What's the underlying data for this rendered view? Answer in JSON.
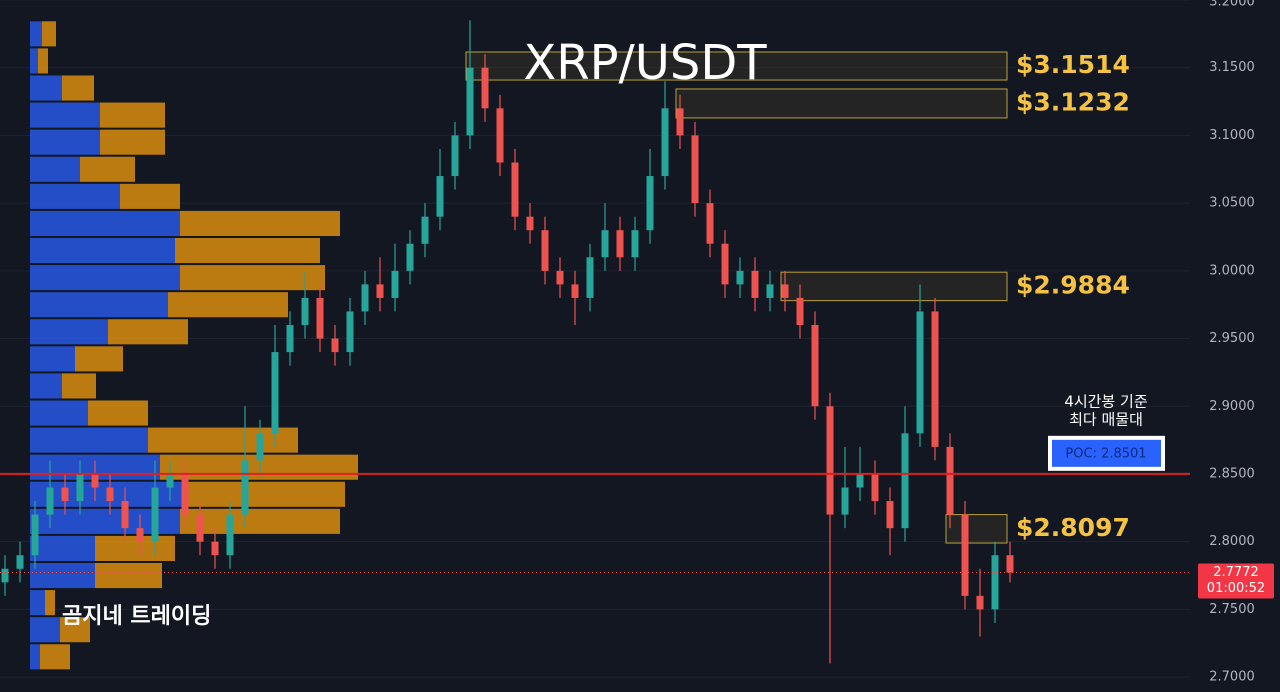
{
  "chart_data": {
    "type": "candlestick",
    "title": "XRP/USDT",
    "watermark": "곰지네 트레이딩",
    "up_color": "#26a69a",
    "down_color": "#ef5350",
    "ylim": [
      2.689,
      3.2
    ],
    "yticks": [
      {
        "value": 3.2,
        "label": "3.2000"
      },
      {
        "value": 3.15,
        "label": "3.1500"
      },
      {
        "value": 3.1,
        "label": "3.1000"
      },
      {
        "value": 3.05,
        "label": "3.0500"
      },
      {
        "value": 3.0,
        "label": "3.0000"
      },
      {
        "value": 2.95,
        "label": "2.9500"
      },
      {
        "value": 2.9,
        "label": "2.9000"
      },
      {
        "value": 2.85,
        "label": "2.8500"
      },
      {
        "value": 2.8,
        "label": "2.8000"
      },
      {
        "value": 2.75,
        "label": "2.7500"
      },
      {
        "value": 2.7,
        "label": "2.7000"
      }
    ],
    "grid": true,
    "open": [
      2.77,
      2.78,
      2.79,
      2.82,
      2.84,
      2.83,
      2.85,
      2.84,
      2.83,
      2.81,
      2.8,
      2.84,
      2.85,
      2.82,
      2.8,
      2.79,
      2.82,
      2.86,
      2.88,
      2.94,
      2.96,
      2.98,
      2.95,
      2.94,
      2.97,
      2.99,
      2.98,
      3.0,
      3.02,
      3.04,
      3.07,
      3.1,
      3.15,
      3.12,
      3.08,
      3.04,
      3.03,
      3.0,
      2.99,
      2.98,
      3.01,
      3.03,
      3.01,
      3.03,
      3.07,
      3.12,
      3.1,
      3.05,
      3.02,
      2.99,
      3.0,
      2.98,
      2.99,
      2.98,
      2.96,
      2.9,
      2.82,
      2.84,
      2.85,
      2.83,
      2.81,
      2.88,
      2.97,
      2.87,
      2.82,
      2.76,
      2.75,
      2.79
    ],
    "high": [
      2.79,
      2.8,
      2.83,
      2.86,
      2.85,
      2.86,
      2.86,
      2.85,
      2.84,
      2.82,
      2.86,
      2.86,
      2.86,
      2.83,
      2.81,
      2.83,
      2.9,
      2.89,
      2.96,
      2.97,
      3.0,
      2.99,
      2.96,
      2.98,
      3.0,
      3.01,
      3.02,
      3.03,
      3.05,
      3.09,
      3.11,
      3.185,
      3.16,
      3.13,
      3.09,
      3.05,
      3.04,
      3.01,
      3.0,
      3.02,
      3.05,
      3.04,
      3.04,
      3.09,
      3.14,
      3.13,
      3.11,
      3.06,
      3.03,
      3.01,
      3.01,
      3.0,
      3.0,
      2.99,
      2.97,
      2.91,
      2.87,
      2.87,
      2.86,
      2.84,
      2.9,
      2.99,
      2.98,
      2.88,
      2.83,
      2.78,
      2.8,
      2.8
    ],
    "low": [
      2.76,
      2.77,
      2.78,
      2.81,
      2.82,
      2.82,
      2.83,
      2.82,
      2.8,
      2.79,
      2.79,
      2.83,
      2.81,
      2.79,
      2.78,
      2.78,
      2.81,
      2.85,
      2.87,
      2.93,
      2.95,
      2.94,
      2.93,
      2.93,
      2.96,
      2.97,
      2.97,
      2.99,
      3.01,
      3.03,
      3.06,
      3.09,
      3.11,
      3.07,
      3.03,
      3.02,
      2.99,
      2.98,
      2.96,
      2.97,
      3.0,
      3.0,
      3.0,
      3.02,
      3.06,
      3.09,
      3.04,
      3.01,
      2.98,
      2.98,
      2.97,
      2.97,
      2.97,
      2.95,
      2.89,
      2.71,
      2.81,
      2.83,
      2.82,
      2.79,
      2.8,
      2.87,
      2.86,
      2.81,
      2.75,
      2.73,
      2.74,
      2.77
    ],
    "close": [
      2.78,
      2.79,
      2.82,
      2.84,
      2.83,
      2.85,
      2.84,
      2.83,
      2.81,
      2.8,
      2.84,
      2.85,
      2.82,
      2.8,
      2.79,
      2.82,
      2.86,
      2.88,
      2.94,
      2.96,
      2.98,
      2.95,
      2.94,
      2.97,
      2.99,
      2.98,
      3.0,
      3.02,
      3.04,
      3.07,
      3.1,
      3.15,
      3.12,
      3.08,
      3.04,
      3.03,
      3.0,
      2.99,
      2.98,
      3.01,
      3.03,
      3.01,
      3.03,
      3.07,
      3.12,
      3.1,
      3.05,
      3.02,
      2.99,
      3.0,
      2.98,
      2.99,
      2.98,
      2.96,
      2.9,
      2.82,
      2.84,
      2.85,
      2.83,
      2.81,
      2.88,
      2.97,
      2.87,
      2.82,
      2.76,
      2.75,
      2.79,
      2.7772
    ],
    "zones": [
      {
        "value": 3.1514,
        "label": "$3.1514",
        "top": 3.1616,
        "bottom": 3.1409,
        "start": 31
      },
      {
        "value": 3.1232,
        "label": "$3.1232",
        "top": 3.1343,
        "bottom": 3.1129,
        "start": 45
      },
      {
        "value": 2.9884,
        "label": "$2.9884",
        "top": 2.999,
        "bottom": 2.978,
        "start": 52
      },
      {
        "value": 2.8097,
        "label": "$2.8097",
        "top": 2.82,
        "bottom": 2.799,
        "start": 63
      }
    ],
    "poc": {
      "value": 2.8501,
      "label": "POC: 2.8501",
      "note": [
        "4시간봉 기준",
        "최다 매물대"
      ]
    },
    "last": {
      "value": 2.7772,
      "countdown": "01:00:52"
    },
    "volume_profile": {
      "step": 0.02,
      "levels": [
        3.175,
        3.155,
        3.135,
        3.115,
        3.095,
        3.075,
        3.055,
        3.035,
        3.015,
        2.995,
        2.975,
        2.955,
        2.935,
        2.915,
        2.895,
        2.875,
        2.855,
        2.835,
        2.815,
        2.795,
        2.775,
        2.755,
        2.735,
        2.715
      ],
      "buy": [
        12,
        8,
        32,
        70,
        70,
        50,
        90,
        150,
        145,
        150,
        138,
        78,
        45,
        32,
        58,
        118,
        130,
        155,
        150,
        65,
        65,
        15,
        30,
        10
      ],
      "sell": [
        14,
        10,
        32,
        65,
        65,
        55,
        60,
        160,
        145,
        145,
        120,
        80,
        48,
        34,
        60,
        150,
        198,
        160,
        160,
        80,
        67,
        10,
        30,
        30
      ]
    }
  }
}
